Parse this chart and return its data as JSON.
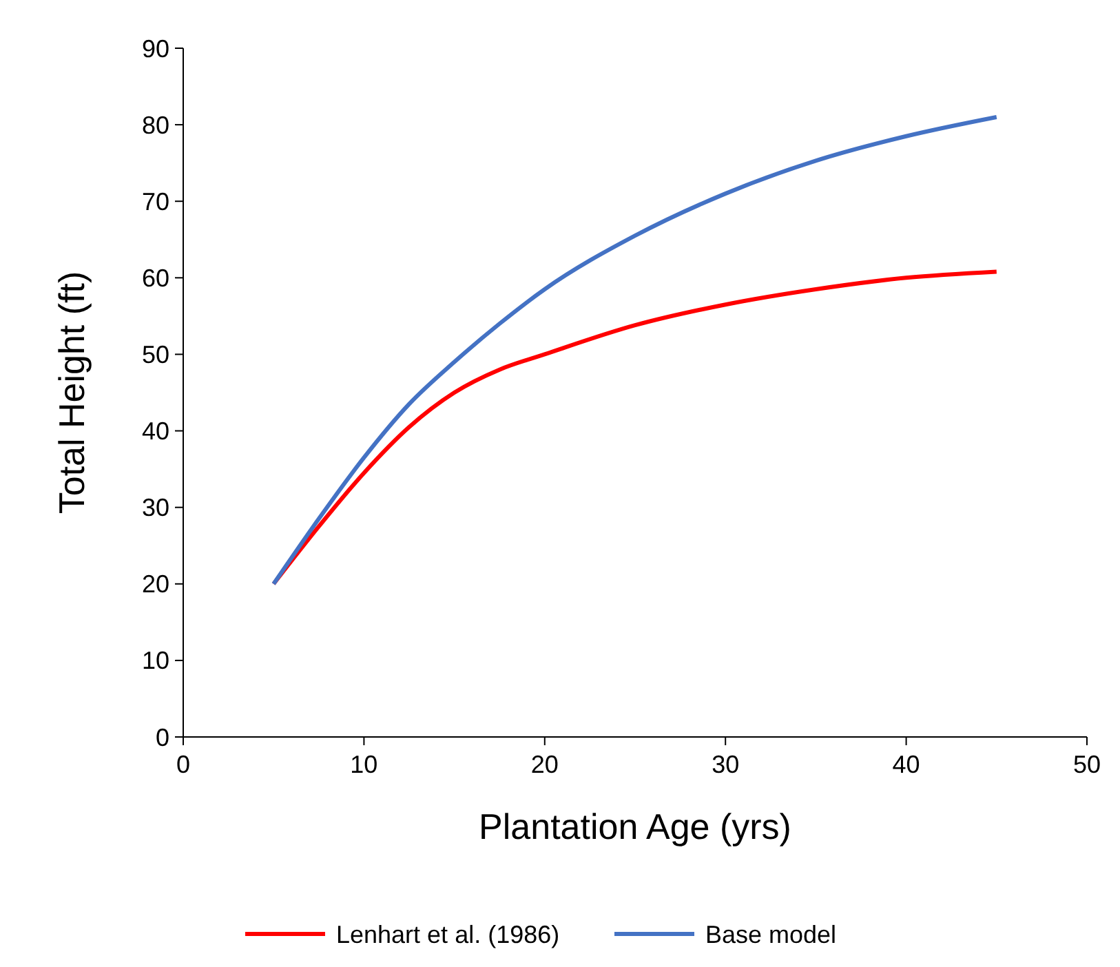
{
  "chart_data": {
    "type": "line",
    "xlabel": "Plantation Age (yrs)",
    "ylabel": "Total Height (ft)",
    "x": [
      5,
      7.5,
      10,
      12.5,
      15,
      17.5,
      20,
      25,
      30,
      35,
      40,
      45
    ],
    "series": [
      {
        "name": "Lenhart et al. (1986)",
        "color": "#ff0000",
        "values": [
          20,
          27.5,
          34.5,
          40.5,
          45,
          48,
          50,
          53.8,
          56.5,
          58.5,
          60,
          60.8
        ]
      },
      {
        "name": "Base model",
        "color": "#4472c4",
        "values": [
          20,
          28.5,
          36.5,
          43.5,
          49,
          54,
          58.5,
          65.5,
          71,
          75.3,
          78.5,
          81
        ]
      }
    ],
    "xlim": [
      0,
      50
    ],
    "xticks": [
      0,
      10,
      20,
      30,
      40,
      50
    ],
    "ylim": [
      0,
      90
    ],
    "yticks": [
      0,
      10,
      20,
      30,
      40,
      50,
      60,
      70,
      80,
      90
    ],
    "grid": false,
    "legend": "bottom",
    "marker": "none",
    "line_style": "solid"
  }
}
